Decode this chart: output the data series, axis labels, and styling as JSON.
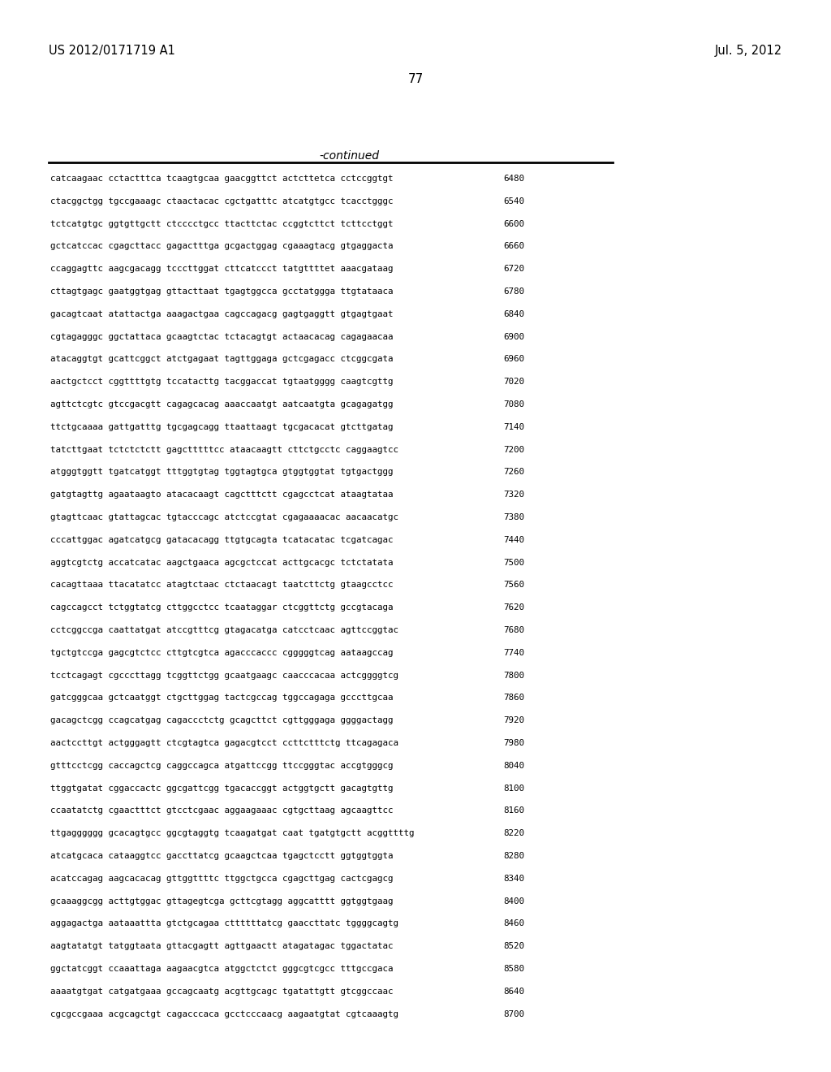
{
  "header_left": "US 2012/0171719 A1",
  "header_right": "Jul. 5, 2012",
  "page_number": "77",
  "continued_label": "-continued",
  "background_color": "#ffffff",
  "text_color": "#000000",
  "sequences": [
    [
      "catcaagaac cctactttca tcaagtgcaa gaacggttct actcttetca cctccggtgt",
      "6480"
    ],
    [
      "ctacggctgg tgccgaaagc ctaactacac cgctgatttc atcatgtgcc tcacctgggc",
      "6540"
    ],
    [
      "tctcatgtgc ggtgttgctt ctcccctgcc ttacttctac ccggtcttct tcttcctggt",
      "6600"
    ],
    [
      "gctcatccac cgagcttacc gagactttga gcgactggag cgaaagtacg gtgaggacta",
      "6660"
    ],
    [
      "ccaggagttc aagcgacagg tcccttggat cttcatccct tatgttttet aaacgataag",
      "6720"
    ],
    [
      "cttagtgagc gaatggtgag gttacttaat tgagtggcca gcctatggga ttgtataaca",
      "6780"
    ],
    [
      "gacagtcaat atattactga aaagactgaa cagccagacg gagtgaggtt gtgagtgaat",
      "6840"
    ],
    [
      "cgtagagggc ggctattaca gcaagtctac tctacagtgt actaacacag cagagaacaa",
      "6900"
    ],
    [
      "atacaggtgt gcattcggct atctgagaat tagttggaga gctcgagacc ctcggcgata",
      "6960"
    ],
    [
      "aactgctcct cggttttgtg tccatacttg tacggaccat tgtaatgggg caagtcgttg",
      "7020"
    ],
    [
      "agttctcgtc gtccgacgtt cagagcacag aaaccaatgt aatcaatgta gcagagatgg",
      "7080"
    ],
    [
      "ttctgcaaaa gattgatttg tgcgagcagg ttaattaagt tgcgacacat gtcttgatag",
      "7140"
    ],
    [
      "tatcttgaat tctctctctt gagctttttcc ataacaagtt cttctgcctc caggaagtcc",
      "7200"
    ],
    [
      "atgggtggtt tgatcatggt tttggtgtag tggtagtgca gtggtggtat tgtgactggg",
      "7260"
    ],
    [
      "gatgtagttg agaataagto atacacaagt cagctttctt cgagcctcat ataagtataa",
      "7320"
    ],
    [
      "gtagttcaac gtattagcac tgtacccagc atctccgtat cgagaaaacac aacaacatgc",
      "7380"
    ],
    [
      "cccattggac agatcatgcg gatacacagg ttgtgcagta tcatacatac tcgatcagac",
      "7440"
    ],
    [
      "aggtcgtctg accatcatac aagctgaaca agcgctccat acttgcacgc tctctatata",
      "7500"
    ],
    [
      "cacagttaaa ttacatatcc atagtctaac ctctaacagt taatcttctg gtaagcctcc",
      "7560"
    ],
    [
      "cagccagcct tctggtatcg cttggcctcc tcaataggar ctcggttctg gccgtacaga",
      "7620"
    ],
    [
      "cctcggccga caattatgat atccgtttcg gtagacatga catcctcaac agttccggtac",
      "7680"
    ],
    [
      "tgctgtccga gagcgtctcc cttgtcgtca agacccaccc cgggggtcag aataagccag",
      "7740"
    ],
    [
      "tcctcagagt cgcccttagg tcggttctgg gcaatgaagc caacccacaa actcggggtcg",
      "7800"
    ],
    [
      "gatcgggcaa gctcaatggt ctgcttggag tactcgccag tggccagaga gcccttgcaa",
      "7860"
    ],
    [
      "gacagctcgg ccagcatgag cagaccctctg gcagcttct cgttgggaga ggggactagg",
      "7920"
    ],
    [
      "aactccttgt actgggagtt ctcgtagtca gagacgtcct ccttctttctg ttcagagaca",
      "7980"
    ],
    [
      "gtttcctcgg caccagctcg caggccagca atgattccgg ttccgggtac accgtgggcg",
      "8040"
    ],
    [
      "ttggtgatat cggaccactc ggcgattcgg tgacaccggt actggtgctt gacagtgttg",
      "8100"
    ],
    [
      "ccaatatctg cgaactttct gtcctcgaac aggaagaaac cgtgcttaag agcaagttcc",
      "8160"
    ],
    [
      "ttgagggggg gcacagtgcc ggcgtaggtg tcaagatgat caat tgatgtgctt acggttttg",
      "8220"
    ],
    [
      "atcatgcaca cataaggtcc gaccttatcg gcaagctcaa tgagctcctt ggtggtggta",
      "8280"
    ],
    [
      "acatccagag aagcacacag gttggttttc ttggctgcca cgagcttgag cactcgagcg",
      "8340"
    ],
    [
      "gcaaaggcgg acttgtggac gttagegtcga gcttcgtagg aggcatttt ggtggtgaag",
      "8400"
    ],
    [
      "aggagactga aataaattta gtctgcagaa cttttttatcg gaaccttatc tggggcagtg",
      "8460"
    ],
    [
      "aagtatatgt tatggtaata gttacgagtt agttgaactt atagatagac tggactatac",
      "8520"
    ],
    [
      "ggctatcggt ccaaattaga aagaacgtca atggctctct gggcgtcgcc tttgccgaca",
      "8580"
    ],
    [
      "aaaatgtgat catgatgaaa gccagcaatg acgttgcagc tgatattgtt gtcggccaac",
      "8640"
    ],
    [
      "cgcgccgaaa acgcagctgt cagacccaca gcctcccaacg aagaatgtat cgtcaaagtg",
      "8700"
    ]
  ]
}
